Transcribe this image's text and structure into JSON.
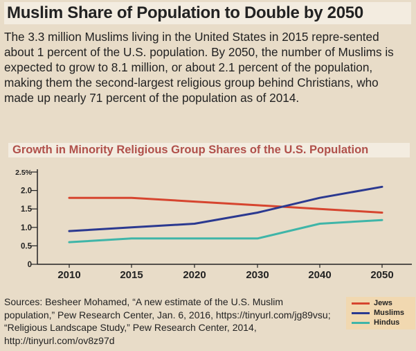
{
  "header": {
    "title": "Muslim Share of Population to Double by 2050",
    "intro": "The 3.3 million Muslims living in the United States in 2015 repre-sented about 1 percent of the U.S. population. By 2050, the number of Muslims is expected to grow to 8.1 million, or about 2.1 percent of the population, making them the second-largest religious group behind Christians, who made up nearly 71 percent of the population as of 2014."
  },
  "chart_data": {
    "type": "line",
    "title": "Growth in Minority Religious Group Shares of the U.S. Population",
    "categories": [
      "2010",
      "2015",
      "2020",
      "2030",
      "2040",
      "2050"
    ],
    "y_ticks": [
      "2.5%",
      "2.0",
      "1.5",
      "1.0",
      "0.5",
      "0"
    ],
    "ylim": [
      0,
      2.5
    ],
    "xlabel": "",
    "ylabel": "",
    "grid": false,
    "legend_position": "bottom-right",
    "series": [
      {
        "name": "Jews",
        "color": "#d6452f",
        "values": [
          1.8,
          1.8,
          1.7,
          1.6,
          1.5,
          1.4
        ]
      },
      {
        "name": "Muslims",
        "color": "#2b3990",
        "values": [
          0.9,
          1.0,
          1.1,
          1.4,
          1.8,
          2.1
        ]
      },
      {
        "name": "Hindus",
        "color": "#3fb5a8",
        "values": [
          0.6,
          0.7,
          0.7,
          0.7,
          1.1,
          1.2
        ]
      }
    ]
  },
  "footer": {
    "sources": "Sources: Besheer Mohamed, “A new estimate of the U.S. Muslim population,” Pew Research Center, Jan. 6, 2016, https://tinyurl.com/jg89vsu; “Religious Landscape Study,” Pew Research Center, 2014, http://tinyurl.com/ov8z97d"
  }
}
